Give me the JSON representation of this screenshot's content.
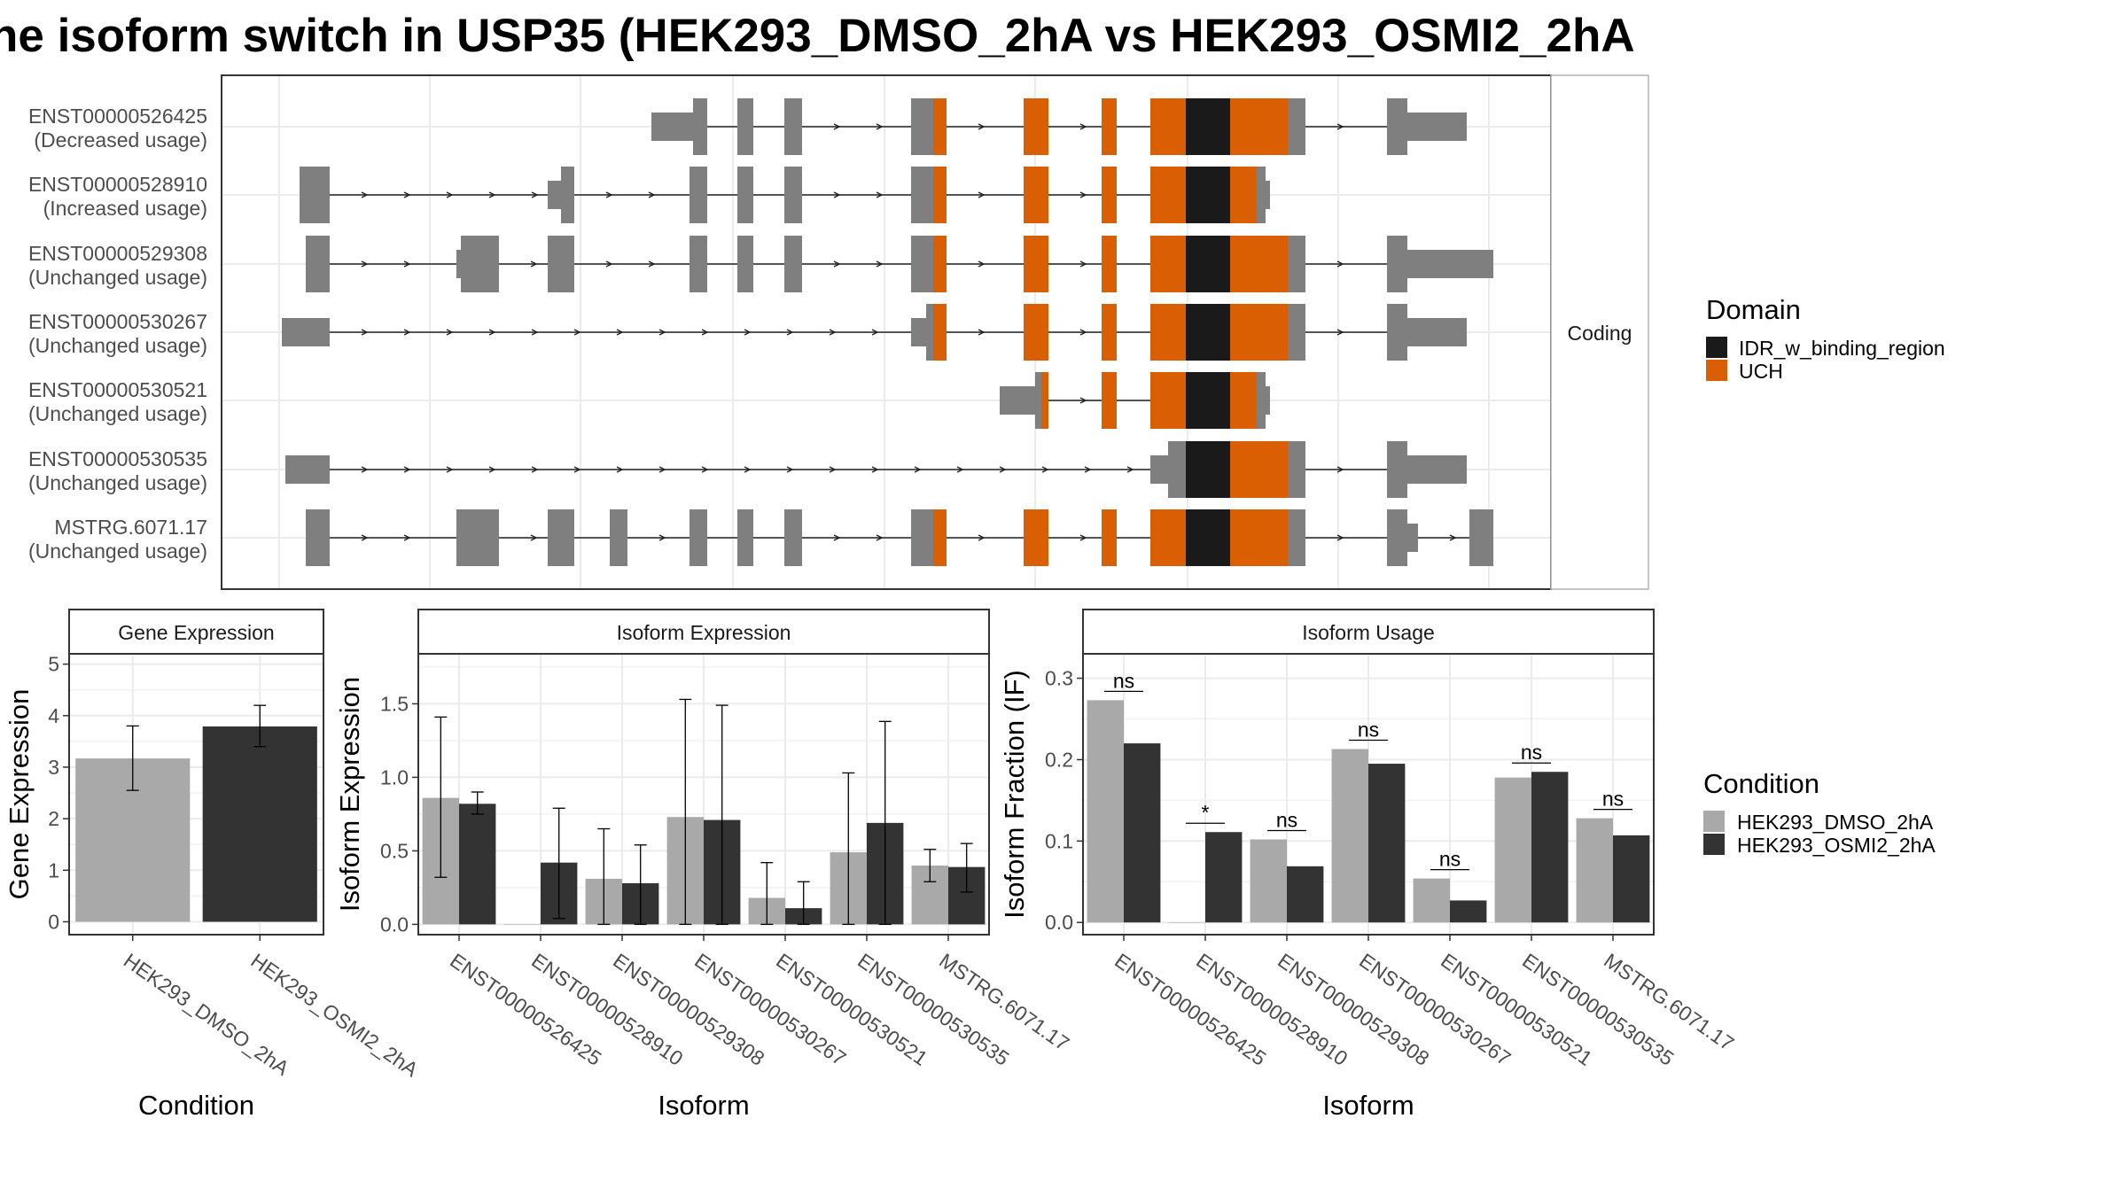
{
  "title": "he isoform switch in USP35 (HEK293_DMSO_2hA vs HEK293_OSMI2_2hA",
  "colors": {
    "exon_gray": "#7f7f7f",
    "uch": "#d95f02",
    "idr": "#1a1a1a",
    "dmso": "#a9a9a9",
    "osmi2": "#333333",
    "grid": "#ebebeb",
    "strip": "#ffffff",
    "frame": "#333333"
  },
  "structure": {
    "facet_label": "Coding",
    "transcripts": [
      {
        "id": "ENST00000526425",
        "usage": "(Decreased usage)"
      },
      {
        "id": "ENST00000528910",
        "usage": "(Increased usage)"
      },
      {
        "id": "ENST00000529308",
        "usage": "(Unchanged usage)"
      },
      {
        "id": "ENST00000530267",
        "usage": "(Unchanged usage)"
      },
      {
        "id": "ENST00000530521",
        "usage": "(Unchanged usage)"
      },
      {
        "id": "ENST00000530535",
        "usage": "(Unchanged usage)"
      },
      {
        "id": "MSTRG.6071.17",
        "usage": "(Unchanged usage)"
      }
    ]
  },
  "domain_legend": {
    "title": "Domain",
    "items": [
      {
        "label": "IDR_w_binding_region",
        "color": "#1a1a1a"
      },
      {
        "label": "UCH",
        "color": "#d95f02"
      }
    ]
  },
  "condition_legend": {
    "title": "Condition",
    "items": [
      {
        "label": "HEK293_DMSO_2hA",
        "color": "#a9a9a9"
      },
      {
        "label": "HEK293_OSMI2_2hA",
        "color": "#333333"
      }
    ]
  },
  "chart_data": [
    {
      "type": "bar",
      "title": "Gene Expression",
      "xlabel": "Condition",
      "ylabel": "Gene Expression",
      "categories": [
        "HEK293_DMSO_2hA",
        "HEK293_OSMI2_2hA"
      ],
      "values": [
        3.17,
        3.79
      ],
      "error_low": [
        2.55,
        3.4
      ],
      "error_high": [
        3.8,
        4.2
      ],
      "ylim": [
        -0.25,
        5.2
      ],
      "yticks": [
        0,
        1,
        2,
        3,
        4,
        5
      ],
      "grid": true
    },
    {
      "type": "bar",
      "title": "Isoform Expression",
      "xlabel": "Isoform",
      "ylabel": "Isoform Expression",
      "categories": [
        "ENST00000526425",
        "ENST00000528910",
        "ENST00000529308",
        "ENST00000530267",
        "ENST00000530521",
        "ENST00000530535",
        "MSTRG.6071.17"
      ],
      "series": [
        {
          "name": "HEK293_DMSO_2hA",
          "values": [
            0.86,
            0.0,
            0.31,
            0.73,
            0.18,
            0.49,
            0.4
          ],
          "error_low": [
            0.32,
            0.0,
            0.0,
            0.0,
            0.0,
            0.0,
            0.29
          ],
          "error_high": [
            1.41,
            0.0,
            0.65,
            1.53,
            0.42,
            1.03,
            0.51
          ]
        },
        {
          "name": "HEK293_OSMI2_2hA",
          "values": [
            0.82,
            0.42,
            0.28,
            0.71,
            0.11,
            0.69,
            0.39
          ],
          "error_low": [
            0.75,
            0.04,
            0.0,
            0.0,
            0.0,
            0.0,
            0.22
          ],
          "error_high": [
            0.9,
            0.79,
            0.54,
            1.49,
            0.29,
            1.38,
            0.55
          ]
        }
      ],
      "ylim": [
        -0.07,
        1.84
      ],
      "yticks": [
        0.0,
        0.5,
        1.0,
        1.5
      ],
      "grid": true
    },
    {
      "type": "bar",
      "title": "Isoform Usage",
      "xlabel": "Isoform",
      "ylabel": "Isoform Fraction (IF)",
      "categories": [
        "ENST00000526425",
        "ENST00000528910",
        "ENST00000529308",
        "ENST00000530267",
        "ENST00000530521",
        "ENST00000530535",
        "MSTRG.6071.17"
      ],
      "series": [
        {
          "name": "HEK293_DMSO_2hA",
          "values": [
            0.273,
            0.0,
            0.102,
            0.213,
            0.054,
            0.178,
            0.128
          ]
        },
        {
          "name": "HEK293_OSMI2_2hA",
          "values": [
            0.22,
            0.111,
            0.069,
            0.195,
            0.027,
            0.185,
            0.107
          ]
        }
      ],
      "significance": [
        "ns",
        "*",
        "ns",
        "ns",
        "ns",
        "ns",
        "ns"
      ],
      "ylim": [
        -0.015,
        0.33
      ],
      "yticks": [
        0.0,
        0.1,
        0.2,
        0.3
      ],
      "grid": true
    }
  ]
}
